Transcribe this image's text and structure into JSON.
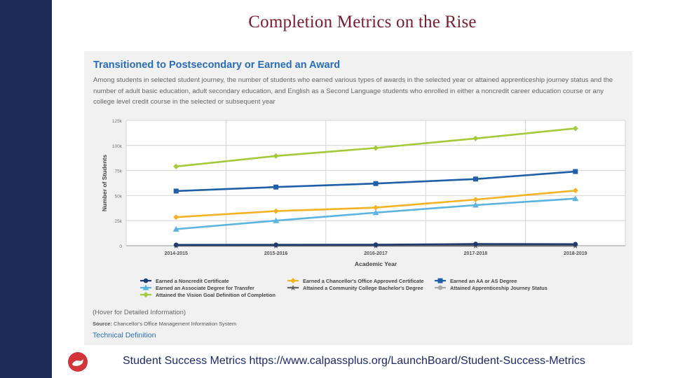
{
  "slide_title": "Completion Metrics on the Rise",
  "panel": {
    "title": "Transitioned to Postsecondary or Earned an Award",
    "description": "Among students in selected student journey, the number of students who earned various types of awards in the selected year or attained apprenticeship journey status and the number of adult basic education, adult secondary education, and English as a Second Language students who enrolled in either a noncredit career education course or any college level credit course in the selected or subsequent year",
    "hover_note": "(Hover for Detailed Information)",
    "source_label": "Source:",
    "source_text": "Chancellor's Office Management Information System",
    "technical_link": "Technical Definition"
  },
  "footer": {
    "text": "Student Success Metrics https://www.calpassplus.org/LaunchBoard/Student-Success-Metrics",
    "logo_icon": "bird-logo-icon"
  },
  "chart_data": {
    "type": "line",
    "title": "",
    "xlabel": "Academic Year",
    "ylabel": "Number of Students",
    "categories": [
      "2014-2015",
      "2015-2016",
      "2016-2017",
      "2017-2018",
      "2018-2019"
    ],
    "ylim": [
      0,
      125000
    ],
    "yticks": [
      0,
      25000,
      50000,
      75000,
      100000,
      125000
    ],
    "ytick_labels": [
      "0",
      "25k",
      "50k",
      "75k",
      "100k",
      "125k"
    ],
    "grid": true,
    "legend_position": "bottom",
    "series": [
      {
        "name": "Earned a Noncredit Certificate",
        "color": "#1d3b6e",
        "marker": "circle",
        "values": [
          800,
          900,
          1000,
          1700,
          1500
        ]
      },
      {
        "name": "Earned a Chancellor's Office Approved Certificate",
        "color": "#f5b324",
        "marker": "diamond",
        "values": [
          28500,
          34500,
          38000,
          46000,
          55000
        ]
      },
      {
        "name": "Earned an AA or AS Degree",
        "color": "#1f5fa8",
        "marker": "square",
        "values": [
          54500,
          58500,
          62000,
          66500,
          74000
        ]
      },
      {
        "name": "Earned an Associate Degree for Transfer",
        "color": "#5bb4e0",
        "marker": "triangle",
        "values": [
          16500,
          25000,
          33000,
          40500,
          47000
        ]
      },
      {
        "name": "Attained a Community College Bachelor's Degree",
        "color": "#666666",
        "marker": "star",
        "values": [
          0,
          0,
          0,
          0,
          0
        ]
      },
      {
        "name": "Attained Apprenticeship Journey Status",
        "color": "#aaaaaa",
        "marker": "circle",
        "values": [
          500,
          500,
          600,
          800,
          800
        ]
      },
      {
        "name": "Attained the Vision Goal Definition of Completion",
        "color": "#a4c93a",
        "marker": "diamond",
        "values": [
          79000,
          89500,
          97500,
          107000,
          117000
        ]
      }
    ]
  }
}
